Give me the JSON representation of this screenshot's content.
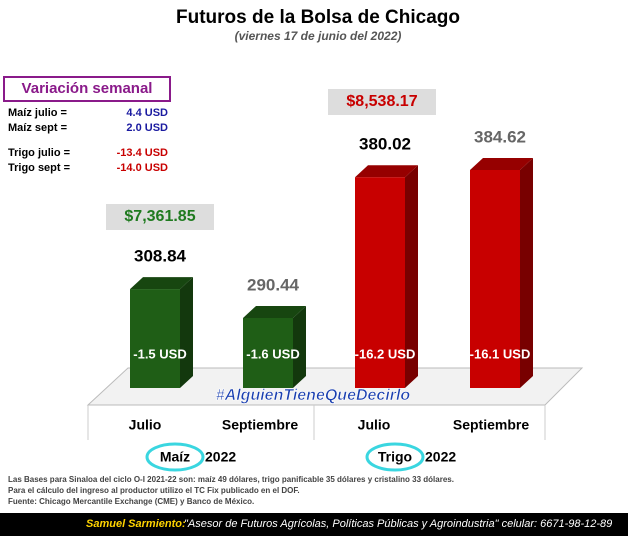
{
  "chart_data": {
    "type": "bar",
    "title": "Futuros de la Bolsa de Chicago",
    "subtitle": "(viernes 17 de junio del 2022)",
    "categories": [
      "Julio",
      "Septiembre",
      "Julio",
      "Septiembre"
    ],
    "values": [
      308.84,
      290.44,
      380.02,
      384.62
    ],
    "colors": [
      "#1f5e16",
      "#1f5e16",
      "#c80000",
      "#c80000"
    ],
    "label_colors": [
      "#000000",
      "#666666",
      "#000000",
      "#666666"
    ],
    "bar_notes": [
      "-1.5 USD",
      "-1.6 USD",
      "-16.2 USD",
      "-16.1 USD"
    ],
    "groups": [
      {
        "name": "Maíz",
        "year": "2022",
        "price": "$7,361.85",
        "color": "#1f7a1f"
      },
      {
        "name": "Trigo",
        "year": "2022",
        "price": "$8,538.17",
        "color": "#c80000"
      }
    ],
    "weekly_variation": {
      "title": "Variación semanal",
      "rows": [
        {
          "label": "Maíz julio  =",
          "value": "4.4 USD",
          "color": "#1a1aa0"
        },
        {
          "label": "Maíz sept  =",
          "value": "2.0 USD",
          "color": "#1a1aa0"
        },
        {
          "label": "Trigo julio =",
          "value": "-13.4 USD",
          "color": "#c80000"
        },
        {
          "label": "Trigo sept  =",
          "value": "-14.0 USD",
          "color": "#c80000"
        }
      ]
    },
    "hashtag": "#AlguienTieneQueDecirlo",
    "notes": [
      "Las Bases para Sinaloa del ciclo O-I 2021-22 son: maíz 49 dólares, trigo panificable 35 dólares y cristalino 33 dólares.",
      "Para el cálculo del ingreso al productor utilizo el TC Fix publicado en el DOF.",
      "Fuente: Chicago Mercantile Exchange (CME) y Banco de México."
    ],
    "footer": {
      "name": "Samuel Sarmiento:",
      "text": "\"Asesor de Futuros Agrícolas, Políticas Públicas y Agroindustria\"  celular: 6671-98-12-89"
    }
  }
}
